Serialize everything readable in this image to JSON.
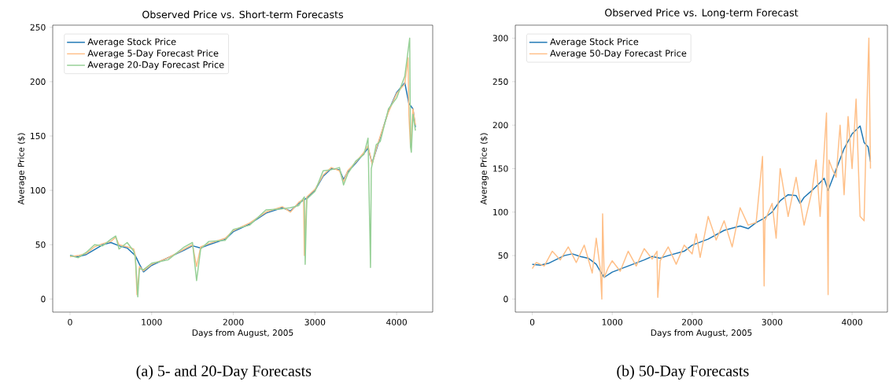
{
  "chart_data": [
    {
      "type": "line",
      "title": "Observed Price vs. Short-term Forecasts",
      "xlabel": "Days from August, 2005",
      "ylabel": "Average Price ($)",
      "xlim": [
        -212,
        4442
      ],
      "ylim": [
        -12,
        252
      ],
      "xticks": [
        0,
        1000,
        2000,
        3000,
        4000
      ],
      "yticks": [
        0,
        50,
        100,
        150,
        200,
        250
      ],
      "legend": "top left",
      "annotations": [
        "(a) 5- and 20-Day Forecasts"
      ],
      "series": [
        {
          "name": "Average Stock Price",
          "color": "#1f77b4",
          "x": [
            0,
            100,
            200,
            400,
            500,
            600,
            700,
            800,
            850,
            900,
            1000,
            1200,
            1400,
            1500,
            1600,
            1700,
            1900,
            2000,
            2200,
            2400,
            2600,
            2700,
            2800,
            2900,
            3000,
            3100,
            3200,
            3300,
            3350,
            3400,
            3500,
            3600,
            3650,
            3700,
            3750,
            3800,
            3900,
            4000,
            4100,
            4150,
            4200,
            4230
          ],
          "values": [
            40,
            39,
            41,
            50,
            52,
            49,
            47,
            40,
            32,
            25,
            31,
            null,
            45,
            49,
            47,
            50,
            55,
            62,
            69,
            79,
            84,
            81,
            88,
            93,
            100,
            113,
            120,
            119,
            110,
            117,
            125,
            134,
            139,
            125,
            137,
            null,
            173,
            190,
            199,
            180,
            175,
            158
          ]
        },
        {
          "name": "Average 5-Day Forecast Price",
          "color": "#ffbf87",
          "x": [
            0,
            100,
            200,
            300,
            400,
            500,
            560,
            600,
            700,
            780,
            800,
            820,
            850,
            900,
            1000,
            1200,
            1400,
            1500,
            1550,
            1600,
            1700,
            1900,
            2000,
            2200,
            2400,
            2600,
            2700,
            2800,
            2860,
            2870,
            2900,
            3000,
            3100,
            3200,
            3300,
            3350,
            3400,
            3500,
            3600,
            3650,
            3680,
            3700,
            3750,
            3800,
            3900,
            4000,
            4100,
            4140,
            4150,
            4170,
            4200,
            4230
          ],
          "values": [
            39,
            40,
            42,
            48,
            51,
            53,
            57,
            50,
            48,
            46,
            40,
            4,
            30,
            26,
            32,
            38,
            46,
            50,
            30,
            48,
            51,
            56,
            63,
            70,
            80,
            85,
            80,
            89,
            92,
            40,
            94,
            101,
            114,
            121,
            118,
            108,
            118,
            126,
            135,
            141,
            null,
            124,
            138,
            150,
            172,
            189,
            198,
            222,
            170,
            140,
            175,
            160
          ]
        },
        {
          "name": "Average 20-Day Forecast Price",
          "color": "#96d096",
          "x": [
            0,
            100,
            200,
            300,
            400,
            500,
            560,
            600,
            700,
            780,
            800,
            830,
            850,
            900,
            1000,
            1200,
            1400,
            1500,
            1550,
            1600,
            1700,
            1900,
            2000,
            2200,
            2400,
            2600,
            2700,
            2800,
            2870,
            2880,
            2900,
            3000,
            3100,
            3200,
            3300,
            3350,
            3400,
            3500,
            3600,
            3650,
            3680,
            3690,
            3750,
            3800,
            3900,
            4000,
            4100,
            4160,
            4170,
            4180,
            4200,
            4230
          ],
          "values": [
            40,
            38,
            43,
            50,
            49,
            55,
            58,
            46,
            52,
            44,
            38,
            2,
            28,
            27,
            33,
            36,
            48,
            52,
            17,
            46,
            53,
            54,
            64,
            68,
            82,
            83,
            84,
            86,
            94,
            32,
            92,
            99,
            118,
            119,
            121,
            105,
            115,
            127,
            133,
            148,
            29,
            120,
            142,
            145,
            175,
            185,
            205,
            240,
            140,
            135,
            170,
            155
          ]
        }
      ]
    },
    {
      "type": "line",
      "title": "Observed Price vs. Long-term Forecast",
      "xlabel": "Days from August, 2005",
      "ylabel": "Average Price ($)",
      "xlim": [
        -212,
        4442
      ],
      "ylim": [
        -15,
        315
      ],
      "xticks": [
        0,
        1000,
        2000,
        3000,
        4000
      ],
      "yticks": [
        0,
        50,
        100,
        150,
        200,
        250,
        300
      ],
      "legend": "top left",
      "annotations": [
        "(b) 50-Day Forecasts"
      ],
      "series": [
        {
          "name": "Average Stock Price",
          "color": "#1f77b4",
          "x": [
            0,
            100,
            200,
            400,
            500,
            600,
            700,
            800,
            850,
            900,
            1000,
            1200,
            1400,
            1500,
            1600,
            1700,
            1900,
            2000,
            2200,
            2400,
            2600,
            2700,
            2800,
            2900,
            3000,
            3100,
            3200,
            3300,
            3350,
            3400,
            3500,
            3600,
            3650,
            3700,
            3750,
            3800,
            3900,
            4000,
            4100,
            4150,
            4200,
            4230
          ],
          "values": [
            40,
            39,
            41,
            50,
            52,
            49,
            47,
            40,
            32,
            25,
            31,
            38,
            45,
            49,
            47,
            50,
            55,
            62,
            69,
            79,
            84,
            81,
            88,
            93,
            100,
            113,
            120,
            119,
            110,
            117,
            125,
            134,
            139,
            125,
            137,
            149,
            173,
            190,
            199,
            180,
            175,
            158
          ]
        },
        {
          "name": "Average 50-Day Forecast Price",
          "color": "#ffbf87",
          "x": [
            0,
            50,
            150,
            250,
            350,
            450,
            550,
            650,
            750,
            800,
            850,
            870,
            880,
            900,
            950,
            1000,
            1100,
            1200,
            1300,
            1400,
            1500,
            1560,
            1570,
            1600,
            1700,
            1800,
            1900,
            2000,
            2050,
            2100,
            2200,
            2300,
            2400,
            2500,
            2600,
            2700,
            2800,
            2880,
            2900,
            2910,
            3000,
            3050,
            3100,
            3200,
            3300,
            3400,
            3500,
            3550,
            3600,
            3680,
            3700,
            3710,
            3750,
            3800,
            3850,
            3900,
            3950,
            4000,
            4050,
            4100,
            4150,
            4180,
            4200,
            4210,
            4230
          ],
          "values": [
            35,
            42,
            38,
            55,
            45,
            60,
            42,
            62,
            30,
            70,
            35,
            0,
            98,
            25,
            36,
            44,
            32,
            55,
            38,
            58,
            46,
            55,
            2,
            44,
            60,
            40,
            62,
            52,
            75,
            48,
            95,
            68,
            90,
            60,
            105,
            85,
            88,
            164,
            15,
            90,
            110,
            70,
            150,
            95,
            140,
            85,
            125,
            160,
            95,
            214,
            5,
            160,
            150,
            140,
            200,
            120,
            210,
            150,
            230,
            95,
            90,
            200,
            270,
            300,
            150
          ]
        }
      ]
    }
  ]
}
